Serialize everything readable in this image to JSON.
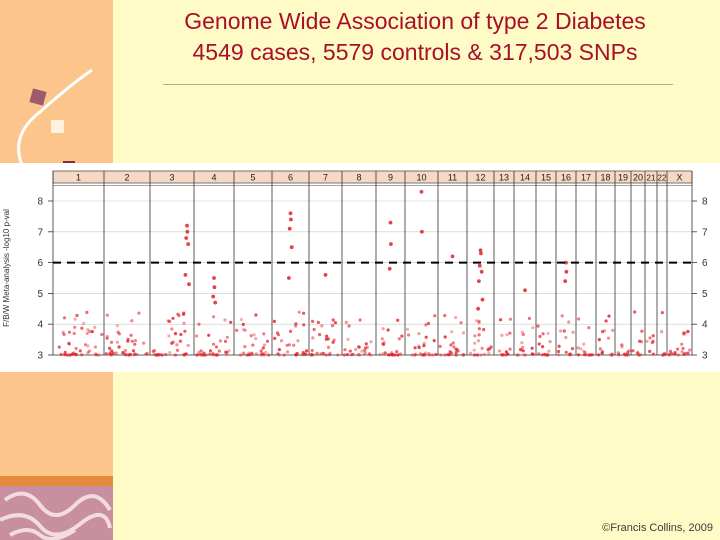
{
  "slide": {
    "title_line1": "Genome Wide Association of type 2 Diabetes",
    "title_line2": "4549 cases, 5579 controls & 317,503 SNPs",
    "credit": "©Francis Collins, 2009"
  },
  "colors": {
    "title": "#a8102a",
    "points": "#e0202a",
    "background": "#fffbc6",
    "panel": "#fbc58b",
    "header": "#f7d9c3"
  },
  "chart_data": {
    "type": "scatter",
    "title": "",
    "xlabel": "",
    "ylabel": "F/B/W Meta-analysis -log10 p-val",
    "ylim": [
      3,
      8.5
    ],
    "yticks": [
      3,
      4,
      5,
      6,
      7,
      8
    ],
    "threshold": 6,
    "threshold_style": "dashed",
    "chromosomes": [
      "1",
      "2",
      "3",
      "4",
      "5",
      "6",
      "7",
      "8",
      "9",
      "10",
      "11",
      "12",
      "13",
      "14",
      "15",
      "16",
      "17",
      "18",
      "19",
      "20",
      "21",
      "22",
      "X"
    ],
    "peaks": [
      {
        "chromosome": "3",
        "values": [
          7.2,
          7.0,
          6.8,
          6.6,
          5.6,
          5.3
        ]
      },
      {
        "chromosome": "4",
        "values": [
          5.5,
          5.2,
          4.9,
          4.7
        ]
      },
      {
        "chromosome": "6",
        "values": [
          7.6,
          7.4,
          7.1,
          6.5,
          5.5
        ]
      },
      {
        "chromosome": "7",
        "values": [
          5.6
        ]
      },
      {
        "chromosome": "9",
        "values": [
          7.3,
          6.6,
          5.8
        ]
      },
      {
        "chromosome": "10",
        "values": [
          8.3,
          7.0
        ]
      },
      {
        "chromosome": "11",
        "values": [
          6.2
        ]
      },
      {
        "chromosome": "12",
        "values": [
          6.4,
          6.3,
          5.9,
          5.7,
          5.4,
          4.8,
          4.5
        ]
      },
      {
        "chromosome": "14",
        "values": [
          5.1
        ]
      },
      {
        "chromosome": "16",
        "values": [
          6.0,
          5.7,
          5.4
        ]
      }
    ]
  }
}
